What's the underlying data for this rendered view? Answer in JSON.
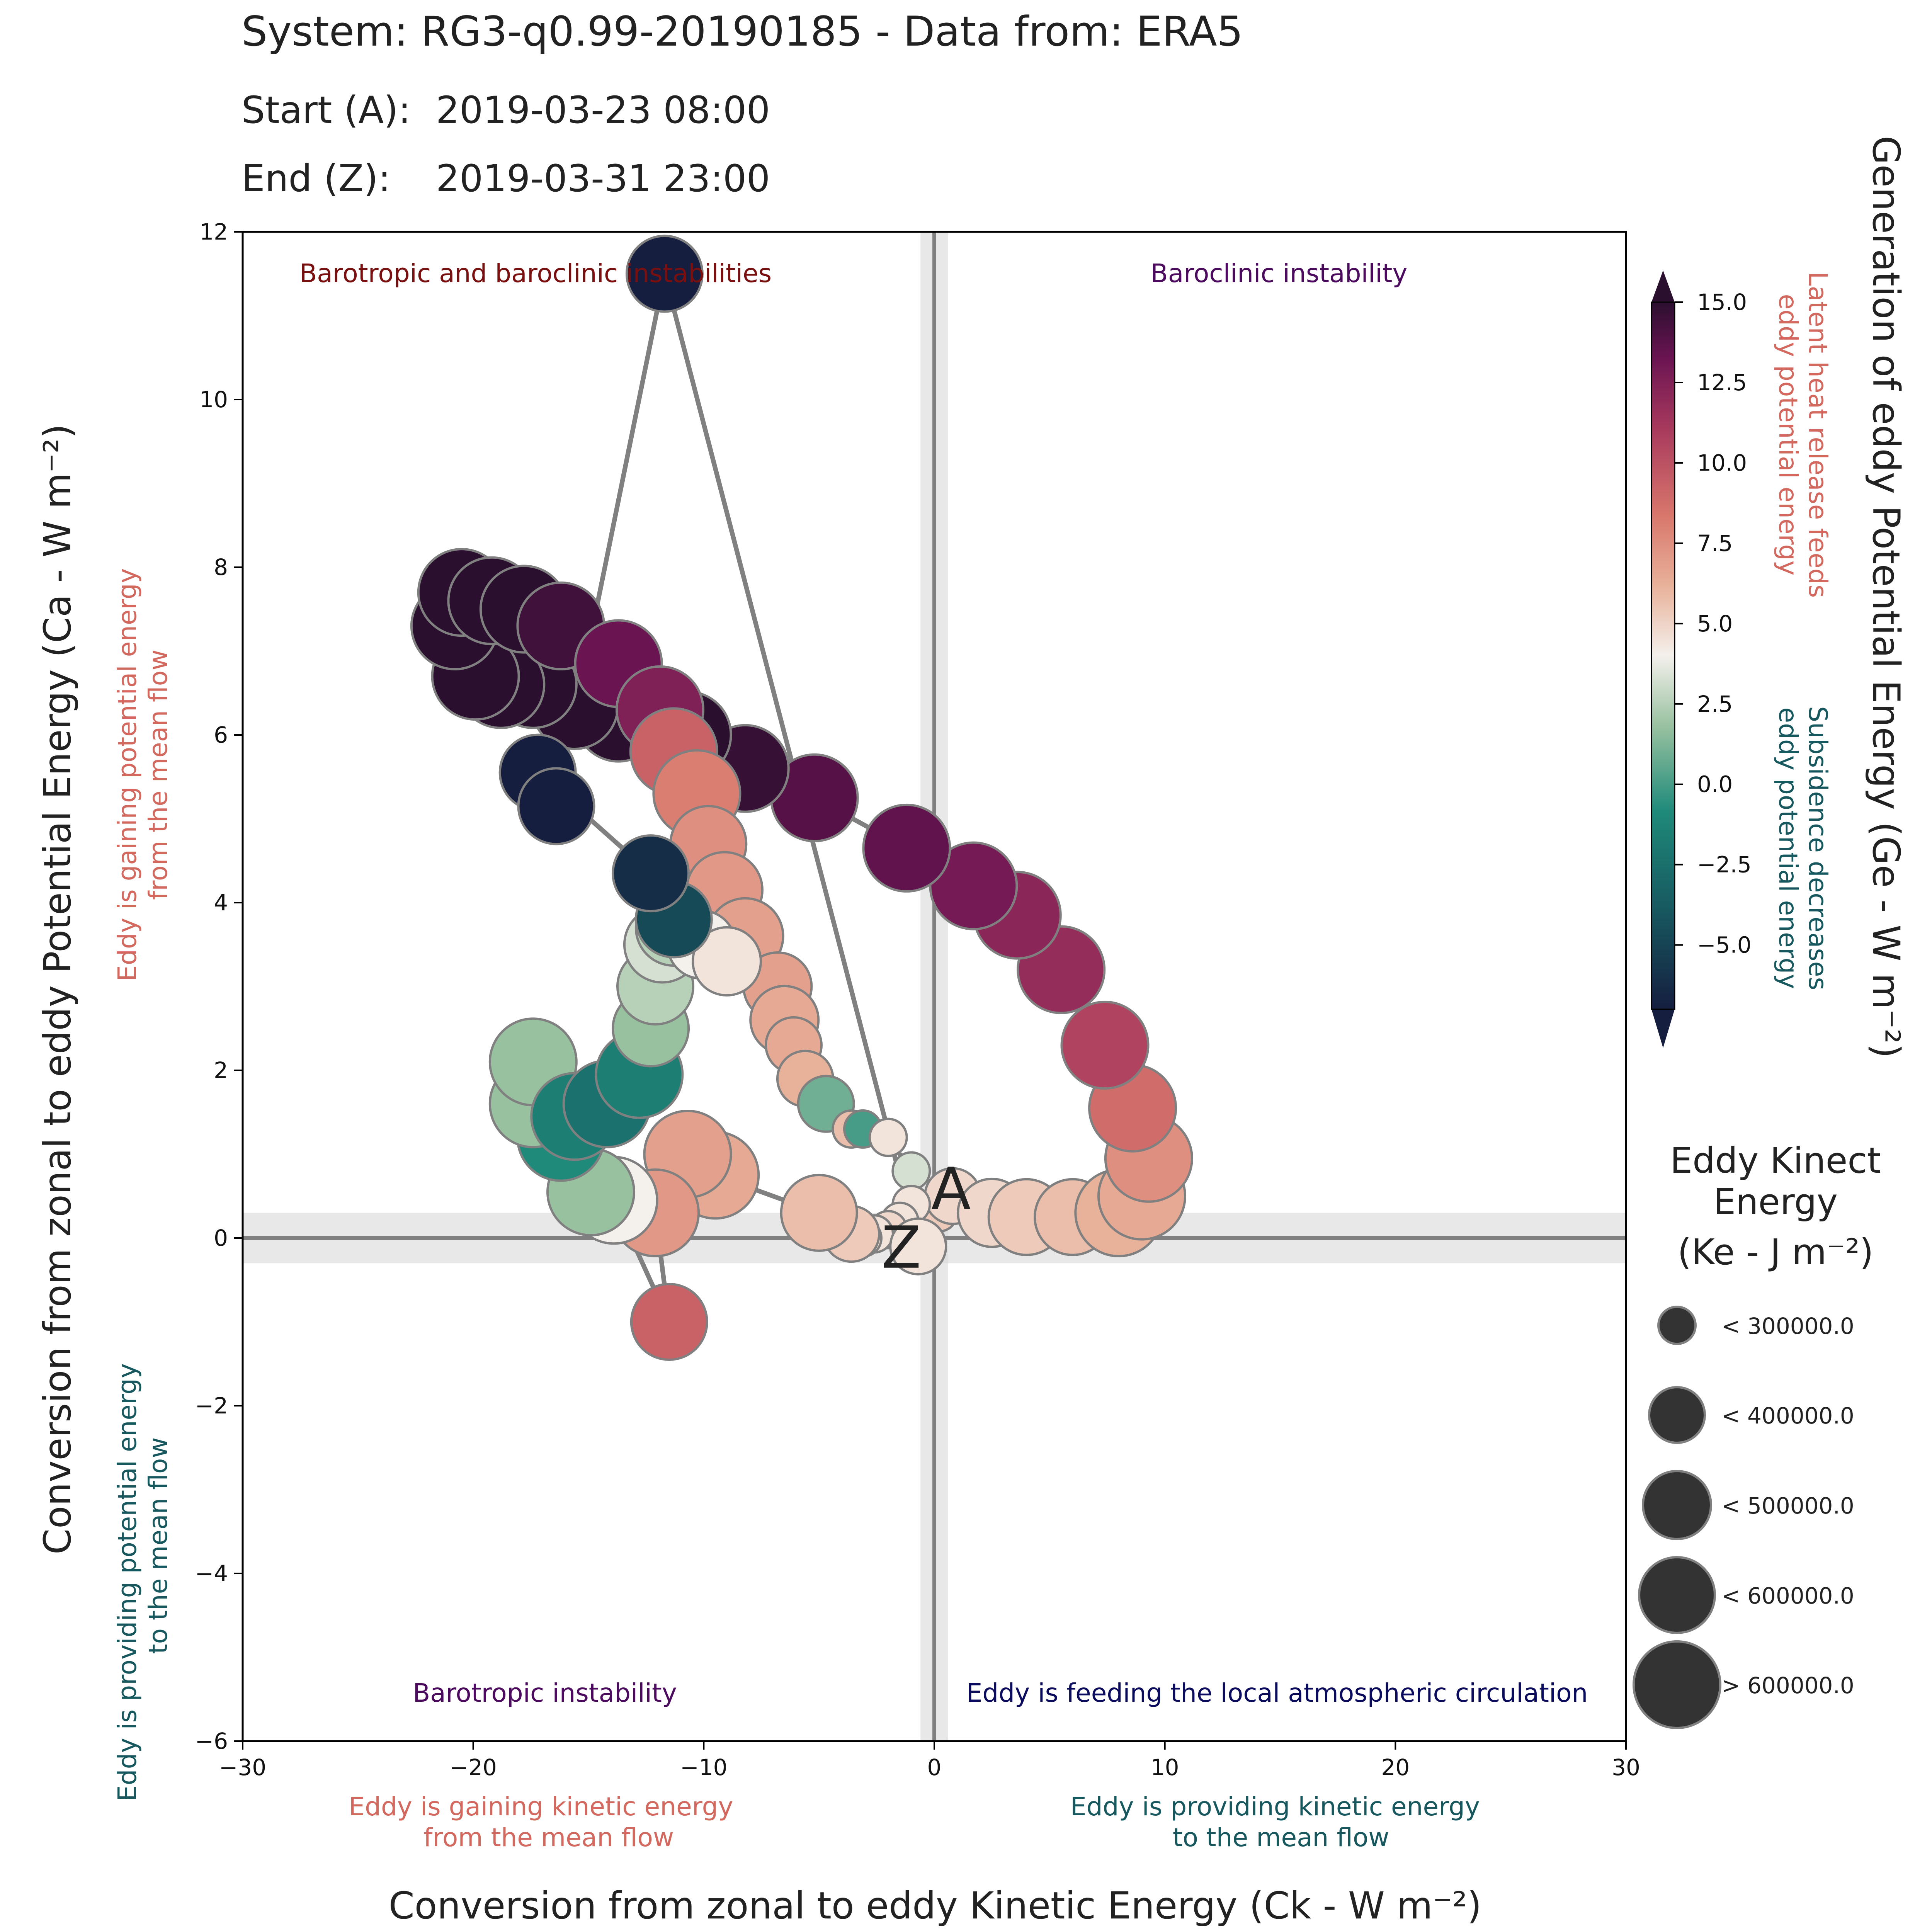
{
  "header": {
    "system_line": "System: RG3-q0.99-20190185 - Data from: ERA5",
    "start_label": "Start (A):",
    "start_value": "2019-03-23 08:00",
    "end_label": "End (Z):",
    "end_value": "2019-03-31 23:00"
  },
  "axes": {
    "xlabel": "Conversion from zonal to eddy Kinetic Energy (Ck -  W m⁻²)",
    "ylabel": "Conversion from zonal to eddy Potential Energy (Ca -  W m⁻²)",
    "colorbar_label": "Generation of eddy Potential Energy (Ge -  W m⁻²)",
    "x_ticks": [
      "−30",
      "−20",
      "−10",
      "0",
      "10",
      "20",
      "30"
    ],
    "y_ticks": [
      "−6",
      "−4",
      "−2",
      "0",
      "2",
      "4",
      "6",
      "8",
      "10",
      "12"
    ],
    "cbar_ticks": [
      "15.0",
      "12.5",
      "10.0",
      "7.5",
      "5.0",
      "2.5",
      "0.0",
      "−2.5",
      "−5.0"
    ]
  },
  "annotations": {
    "top_left": "Barotropic and baroclinic instabilities",
    "top_right": "Baroclinic instability",
    "bottom_left": "Barotropic instability",
    "bottom_right": "Eddy is feeding the local atmospheric circulation",
    "x_left_1": "Eddy is gaining kinetic energy",
    "x_left_2": "from the mean flow",
    "x_right_1": "Eddy is providing kinetic energy",
    "x_right_2": "to the mean flow",
    "y_top_1": "Eddy is gaining potential energy",
    "y_top_2": "from the mean flow",
    "y_bottom_1": "Eddy is providing potential energy",
    "y_bottom_2": "to the mean flow",
    "cbar_top_1": "Latent heat release feeds",
    "cbar_top_2": "eddy potential energy",
    "cbar_bottom_1": "Subsidence decreases",
    "cbar_bottom_2": "eddy potential energy",
    "start_marker": "A",
    "end_marker": "Z"
  },
  "size_legend": {
    "title_1": "Eddy Kinect",
    "title_2": "Energy",
    "title_3": "(Ke -  J m⁻²)",
    "items": [
      "< 300000.0",
      "< 400000.0",
      "< 500000.0",
      "< 600000.0",
      "> 600000.0"
    ]
  },
  "colors": {
    "text": "#222222",
    "annotation_red": "#7a0f0f",
    "annotation_purple": "#4b0a5e",
    "annotation_navy": "#0b0b5e",
    "gain_text": "#d2685e",
    "provide_text": "#17585f",
    "marker_edge": "#808080",
    "track": "#808080"
  },
  "chart_data": {
    "type": "scatter",
    "title": "System: RG3-q0.99-20190185 - Data from: ERA5",
    "xlabel": "Conversion from zonal to eddy Kinetic Energy (Ck -  W m⁻²)",
    "ylabel": "Conversion from zonal to eddy Potential Energy (Ca -  W m⁻²)",
    "xlim": [
      -30,
      30
    ],
    "ylim": [
      -6,
      12
    ],
    "color_variable": "Generation of eddy Potential Energy (Ge -  W m⁻²)",
    "color_range": [
      -7,
      15
    ],
    "size_variable": "Eddy Kinect Energy (Ke -  J m⁻²)",
    "size_classes": [
      "< 300000.0",
      "< 400000.0",
      "< 500000.0",
      "< 600000.0",
      "> 600000.0"
    ],
    "grid": false,
    "legend": "right",
    "points": [
      {
        "x": 0.2,
        "y": 0.3,
        "ge": 1.5,
        "ke_class": 1
      },
      {
        "x": 0.8,
        "y": 0.5,
        "ge": 1.0,
        "ke_class": 2
      },
      {
        "x": 2.5,
        "y": 0.3,
        "ge": 1.0,
        "ke_class": 3
      },
      {
        "x": 4.0,
        "y": 0.25,
        "ge": 1.5,
        "ke_class": 4
      },
      {
        "x": 6.0,
        "y": 0.25,
        "ge": 2.0,
        "ke_class": 4
      },
      {
        "x": 8.0,
        "y": 0.3,
        "ge": 2.5,
        "ke_class": 5
      },
      {
        "x": 9.0,
        "y": 0.5,
        "ge": 3.0,
        "ke_class": 5
      },
      {
        "x": 9.3,
        "y": 0.95,
        "ge": 4.5,
        "ke_class": 5
      },
      {
        "x": 8.6,
        "y": 1.55,
        "ge": 6.5,
        "ke_class": 5
      },
      {
        "x": 7.4,
        "y": 2.3,
        "ge": 8.5,
        "ke_class": 5
      },
      {
        "x": 5.5,
        "y": 3.2,
        "ge": 10.0,
        "ke_class": 5
      },
      {
        "x": 3.6,
        "y": 3.85,
        "ge": 10.5,
        "ke_class": 5
      },
      {
        "x": 1.7,
        "y": 4.2,
        "ge": 11.5,
        "ke_class": 5
      },
      {
        "x": -1.2,
        "y": 4.65,
        "ge": 12.5,
        "ke_class": 5
      },
      {
        "x": -5.2,
        "y": 5.25,
        "ge": 13.0,
        "ke_class": 5
      },
      {
        "x": -8.2,
        "y": 5.6,
        "ge": 14.5,
        "ke_class": 5
      },
      {
        "x": -10.7,
        "y": 6.0,
        "ge": 15.0,
        "ke_class": 5
      },
      {
        "x": -13.7,
        "y": 6.2,
        "ge": 15.0,
        "ke_class": 5
      },
      {
        "x": -15.6,
        "y": 6.35,
        "ge": 15.0,
        "ke_class": 5
      },
      {
        "x": -17.4,
        "y": 6.6,
        "ge": 15.0,
        "ke_class": 5
      },
      {
        "x": -18.8,
        "y": 6.6,
        "ge": 15.0,
        "ke_class": 5
      },
      {
        "x": -19.9,
        "y": 6.7,
        "ge": 15.0,
        "ke_class": 5
      },
      {
        "x": -20.8,
        "y": 7.3,
        "ge": 15.0,
        "ke_class": 5
      },
      {
        "x": -20.5,
        "y": 7.7,
        "ge": 15.0,
        "ke_class": 5
      },
      {
        "x": -19.2,
        "y": 7.6,
        "ge": 15.0,
        "ke_class": 5
      },
      {
        "x": -17.8,
        "y": 7.5,
        "ge": 15.0,
        "ke_class": 5
      },
      {
        "x": -16.2,
        "y": 7.3,
        "ge": 14.0,
        "ke_class": 5
      },
      {
        "x": -13.7,
        "y": 6.85,
        "ge": 12.0,
        "ke_class": 5
      },
      {
        "x": -11.9,
        "y": 6.3,
        "ge": 11.0,
        "ke_class": 5
      },
      {
        "x": -11.3,
        "y": 5.8,
        "ge": 7.0,
        "ke_class": 5
      },
      {
        "x": -10.3,
        "y": 5.3,
        "ge": 5.5,
        "ke_class": 5
      },
      {
        "x": -9.8,
        "y": 4.7,
        "ge": 4.5,
        "ke_class": 4
      },
      {
        "x": -9.1,
        "y": 4.15,
        "ge": 4.0,
        "ke_class": 4
      },
      {
        "x": -8.2,
        "y": 3.6,
        "ge": 3.5,
        "ke_class": 4
      },
      {
        "x": -6.8,
        "y": 3.0,
        "ge": 3.5,
        "ke_class": 3
      },
      {
        "x": -6.5,
        "y": 2.6,
        "ge": 3.0,
        "ke_class": 3
      },
      {
        "x": -6.1,
        "y": 2.3,
        "ge": 3.0,
        "ke_class": 2
      },
      {
        "x": -5.6,
        "y": 1.9,
        "ge": 2.5,
        "ke_class": 2
      },
      {
        "x": -4.7,
        "y": 1.6,
        "ge": -2.0,
        "ke_class": 2
      },
      {
        "x": -3.6,
        "y": 1.3,
        "ge": 2.0,
        "ke_class": 1
      },
      {
        "x": -3.1,
        "y": 1.3,
        "ge": -2.5,
        "ke_class": 1
      },
      {
        "x": -2.0,
        "y": 1.2,
        "ge": 0.5,
        "ke_class": 1
      },
      {
        "x": -1.0,
        "y": 0.8,
        "ge": -0.5,
        "ke_class": 1
      },
      {
        "x": -1.0,
        "y": 0.4,
        "ge": 0.5,
        "ke_class": 1
      },
      {
        "x": -1.5,
        "y": 0.2,
        "ge": 0.5,
        "ke_class": 1
      },
      {
        "x": -2.0,
        "y": 0.1,
        "ge": 1.0,
        "ke_class": 1
      },
      {
        "x": -2.6,
        "y": 0.05,
        "ge": 0.5,
        "ke_class": 1
      },
      {
        "x": -3.1,
        "y": 0.0,
        "ge": 1.0,
        "ke_class": 1
      },
      {
        "x": -3.6,
        "y": 0.05,
        "ge": 1.5,
        "ke_class": 2
      },
      {
        "x": -5.0,
        "y": 0.3,
        "ge": 2.0,
        "ke_class": 4
      },
      {
        "x": -9.5,
        "y": 0.75,
        "ge": 3.0,
        "ke_class": 5
      },
      {
        "x": -10.7,
        "y": 1.0,
        "ge": 3.5,
        "ke_class": 5
      },
      {
        "x": -12.1,
        "y": 0.3,
        "ge": 4.0,
        "ke_class": 5
      },
      {
        "x": -11.5,
        "y": -1.0,
        "ge": 7.0,
        "ke_class": 4
      },
      {
        "x": -13.9,
        "y": 0.45,
        "ge": 0.0,
        "ke_class": 5
      },
      {
        "x": -14.9,
        "y": 0.55,
        "ge": -1.5,
        "ke_class": 5
      },
      {
        "x": -16.2,
        "y": 1.2,
        "ge": -3.0,
        "ke_class": 5
      },
      {
        "x": -17.4,
        "y": 1.6,
        "ge": -1.5,
        "ke_class": 5
      },
      {
        "x": -17.4,
        "y": 2.1,
        "ge": -1.5,
        "ke_class": 5
      },
      {
        "x": -15.6,
        "y": 1.45,
        "ge": -3.5,
        "ke_class": 5
      },
      {
        "x": -14.2,
        "y": 1.6,
        "ge": -4.0,
        "ke_class": 5
      },
      {
        "x": -12.8,
        "y": 1.95,
        "ge": -3.5,
        "ke_class": 5
      },
      {
        "x": -12.3,
        "y": 2.5,
        "ge": -1.5,
        "ke_class": 4
      },
      {
        "x": -12.1,
        "y": 3.0,
        "ge": -1.0,
        "ke_class": 4
      },
      {
        "x": -11.8,
        "y": 3.5,
        "ge": -0.5,
        "ke_class": 4
      },
      {
        "x": -11.3,
        "y": 3.7,
        "ge": -1.0,
        "ke_class": 4
      },
      {
        "x": -10.1,
        "y": 3.5,
        "ge": 0.0,
        "ke_class": 3
      },
      {
        "x": -9.0,
        "y": 3.3,
        "ge": 0.5,
        "ke_class": 3
      },
      {
        "x": -11.3,
        "y": 3.8,
        "ge": -5.5,
        "ke_class": 4
      },
      {
        "x": -12.3,
        "y": 4.35,
        "ge": -6.5,
        "ke_class": 4
      },
      {
        "x": -17.2,
        "y": 5.55,
        "ge": -7.0,
        "ke_class": 4
      },
      {
        "x": -16.4,
        "y": 5.15,
        "ge": -7.0,
        "ke_class": 4
      },
      {
        "x": -11.7,
        "y": 11.5,
        "ge": -7.0,
        "ke_class": 4
      },
      {
        "x": -0.7,
        "y": -0.1,
        "ge": 0.5,
        "ke_class": 2
      }
    ]
  }
}
